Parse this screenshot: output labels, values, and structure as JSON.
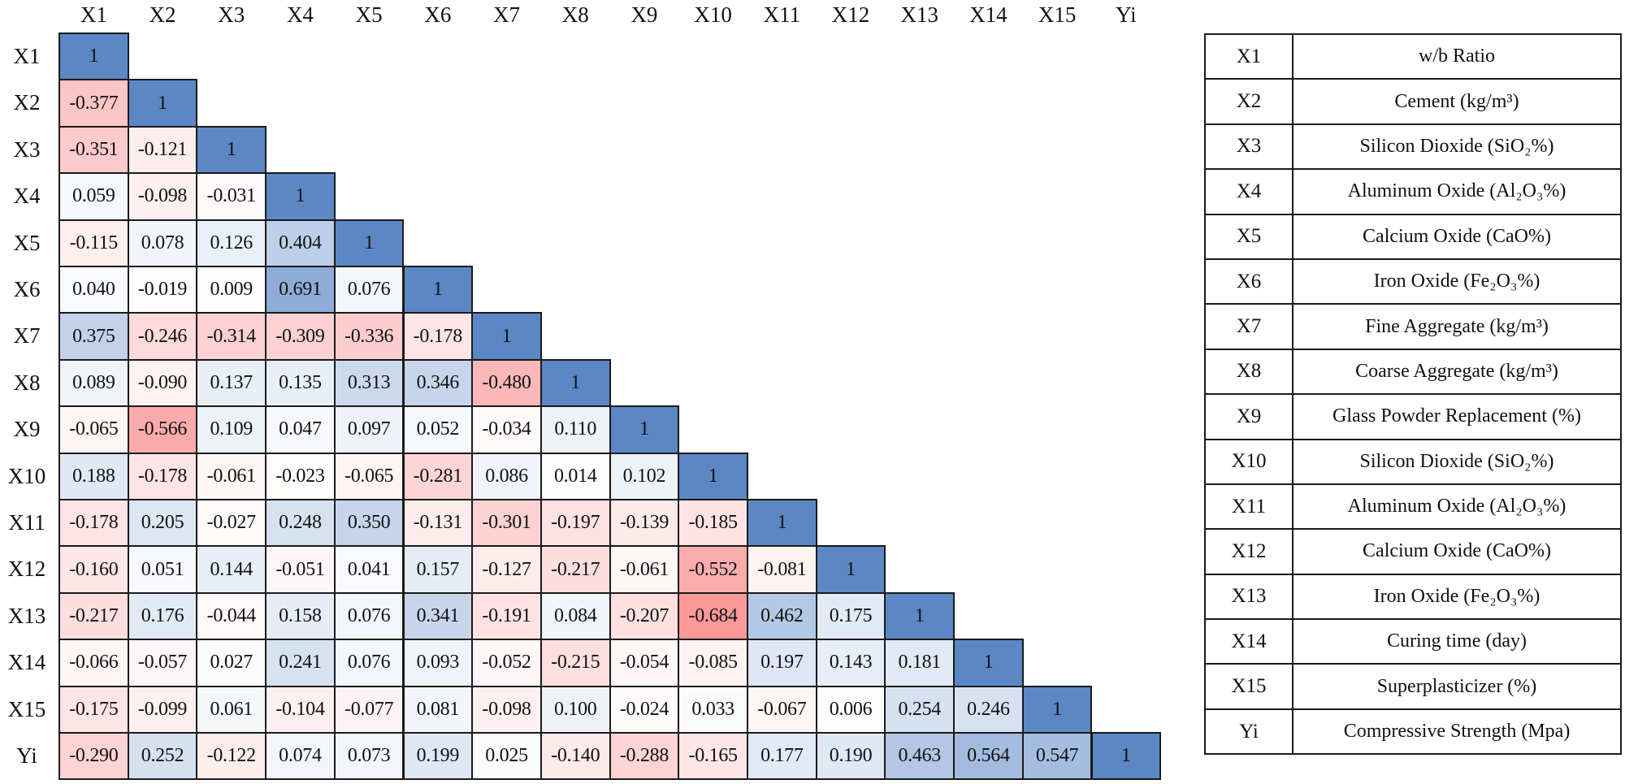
{
  "chart_data": {
    "type": "heatmap",
    "title": "",
    "variables": [
      "X1",
      "X2",
      "X3",
      "X4",
      "X5",
      "X6",
      "X7",
      "X8",
      "X9",
      "X10",
      "X11",
      "X12",
      "X13",
      "X14",
      "X15",
      "Yi"
    ],
    "lower_triangle": [
      [
        1
      ],
      [
        -0.377,
        1
      ],
      [
        -0.351,
        -0.121,
        1
      ],
      [
        0.059,
        -0.098,
        -0.031,
        1
      ],
      [
        -0.115,
        0.078,
        0.126,
        0.404,
        1
      ],
      [
        0.04,
        -0.019,
        0.009,
        0.691,
        0.076,
        1
      ],
      [
        0.375,
        -0.246,
        -0.314,
        -0.309,
        -0.336,
        -0.178,
        1
      ],
      [
        0.089,
        -0.09,
        0.137,
        0.135,
        0.313,
        0.346,
        -0.48,
        1
      ],
      [
        -0.065,
        -0.566,
        0.109,
        0.047,
        0.097,
        0.052,
        -0.034,
        0.11,
        1
      ],
      [
        0.188,
        -0.178,
        -0.061,
        -0.023,
        -0.065,
        -0.281,
        0.086,
        0.014,
        0.102,
        1
      ],
      [
        -0.178,
        0.205,
        -0.027,
        0.248,
        0.35,
        -0.131,
        -0.301,
        -0.197,
        -0.139,
        -0.185,
        1
      ],
      [
        -0.16,
        0.051,
        0.144,
        -0.051,
        0.041,
        0.157,
        -0.127,
        -0.217,
        -0.061,
        -0.552,
        -0.081,
        1
      ],
      [
        -0.217,
        0.176,
        -0.044,
        0.158,
        0.076,
        0.341,
        -0.191,
        0.084,
        -0.207,
        -0.684,
        0.462,
        0.175,
        1
      ],
      [
        -0.066,
        -0.057,
        0.027,
        0.241,
        0.076,
        0.093,
        -0.052,
        -0.215,
        -0.054,
        -0.085,
        0.197,
        0.143,
        0.181,
        1
      ],
      [
        -0.175,
        -0.099,
        0.061,
        -0.104,
        -0.077,
        0.081,
        -0.098,
        0.1,
        -0.024,
        0.033,
        -0.067,
        0.006,
        0.254,
        0.246,
        1
      ],
      [
        -0.29,
        0.252,
        -0.122,
        0.074,
        0.073,
        0.199,
        0.025,
        -0.14,
        -0.288,
        -0.165,
        0.177,
        0.19,
        0.463,
        0.564,
        0.547,
        1
      ]
    ],
    "display_values": [
      [
        "1"
      ],
      [
        "-0.377",
        "1"
      ],
      [
        "-0.351",
        "-0.121",
        "1"
      ],
      [
        "0.059",
        "-0.098",
        "-0.031",
        "1"
      ],
      [
        "-0.115",
        "0.078",
        "0.126",
        "0.404",
        "1"
      ],
      [
        "0.040",
        "-0.019",
        "0.009",
        "0.691",
        "0.076",
        "1"
      ],
      [
        "0.375",
        "-0.246",
        "-0.314",
        "-0.309",
        "-0.336",
        "-0.178",
        "1"
      ],
      [
        "0.089",
        "-0.090",
        "0.137",
        "0.135",
        "0.313",
        "0.346",
        "-0.480",
        "1"
      ],
      [
        "-0.065",
        "-0.566",
        "0.109",
        "0.047",
        "0.097",
        "0.052",
        "-0.034",
        "0.110",
        "1"
      ],
      [
        "0.188",
        "-0.178",
        "-0.061",
        "-0.023",
        "-0.065",
        "-0.281",
        "0.086",
        "0.014",
        "0.102",
        "1"
      ],
      [
        "-0.178",
        "0.205",
        "-0.027",
        "0.248",
        "0.350",
        "-0.131",
        "-0.301",
        "-0.197",
        "-0.139",
        "-0.185",
        "1"
      ],
      [
        "-0.160",
        "0.051",
        "0.144",
        "-0.051",
        "0.041",
        "0.157",
        "-0.127",
        "-0.217",
        "-0.061",
        "-0.552",
        "-0.081",
        "1"
      ],
      [
        "-0.217",
        "0.176",
        "-0.044",
        "0.158",
        "0.076",
        "0.341",
        "-0.191",
        "0.084",
        "-0.207",
        "-0.684",
        "0.462",
        "0.175",
        "1"
      ],
      [
        "-0.066",
        "-0.057",
        "0.027",
        "0.241",
        "0.076",
        "0.093",
        "-0.052",
        "-0.215",
        "-0.054",
        "-0.085",
        "0.197",
        "0.143",
        "0.181",
        "1"
      ],
      [
        "-0.175",
        "-0.099",
        "0.061",
        "-0.104",
        "-0.077",
        "0.081",
        "-0.098",
        "0.100",
        "-0.024",
        "0.033",
        "-0.067",
        "0.006",
        "0.254",
        "0.246",
        "1"
      ],
      [
        "-0.290",
        "0.252",
        "-0.122",
        "0.074",
        "0.073",
        "0.199",
        "0.025",
        "-0.140",
        "-0.288",
        "-0.165",
        "0.177",
        "0.190",
        "0.463",
        "0.564",
        "0.547",
        "1"
      ]
    ],
    "color_scale": {
      "positive_max": "#5b87c5",
      "zero": "#ffffff",
      "negative_max": "#f8696b",
      "range": [
        -1,
        1
      ]
    },
    "legend_position": "right",
    "grid": true
  },
  "legend_table": [
    {
      "code": "X1",
      "description": "w/b Ratio"
    },
    {
      "code": "X2",
      "description": "Cement (kg/m³)"
    },
    {
      "code": "X3",
      "description": "Silicon Dioxide (SiO₂%)"
    },
    {
      "code": "X4",
      "description": "Aluminum Oxide (Al₂O₃%)"
    },
    {
      "code": "X5",
      "description": "Calcium Oxide (CaO%)"
    },
    {
      "code": "X6",
      "description": "Iron Oxide (Fe₂O₃%)"
    },
    {
      "code": "X7",
      "description": "Fine Aggregate (kg/m³)"
    },
    {
      "code": "X8",
      "description": "Coarse Aggregate (kg/m³)"
    },
    {
      "code": "X9",
      "description": "Glass Powder Replacement (%)"
    },
    {
      "code": "X10",
      "description": "Silicon Dioxide (SiO₂%)"
    },
    {
      "code": "X11",
      "description": "Aluminum Oxide (Al₂O₃%)"
    },
    {
      "code": "X12",
      "description": "Calcium Oxide (CaO%)"
    },
    {
      "code": "X13",
      "description": "Iron Oxide (Fe₂O₃%)"
    },
    {
      "code": "X14",
      "description": "Curing time (day)"
    },
    {
      "code": "X15",
      "description": "Superplasticizer (%)"
    },
    {
      "code": "Yi",
      "description": "Compressive Strength (Mpa)"
    }
  ]
}
